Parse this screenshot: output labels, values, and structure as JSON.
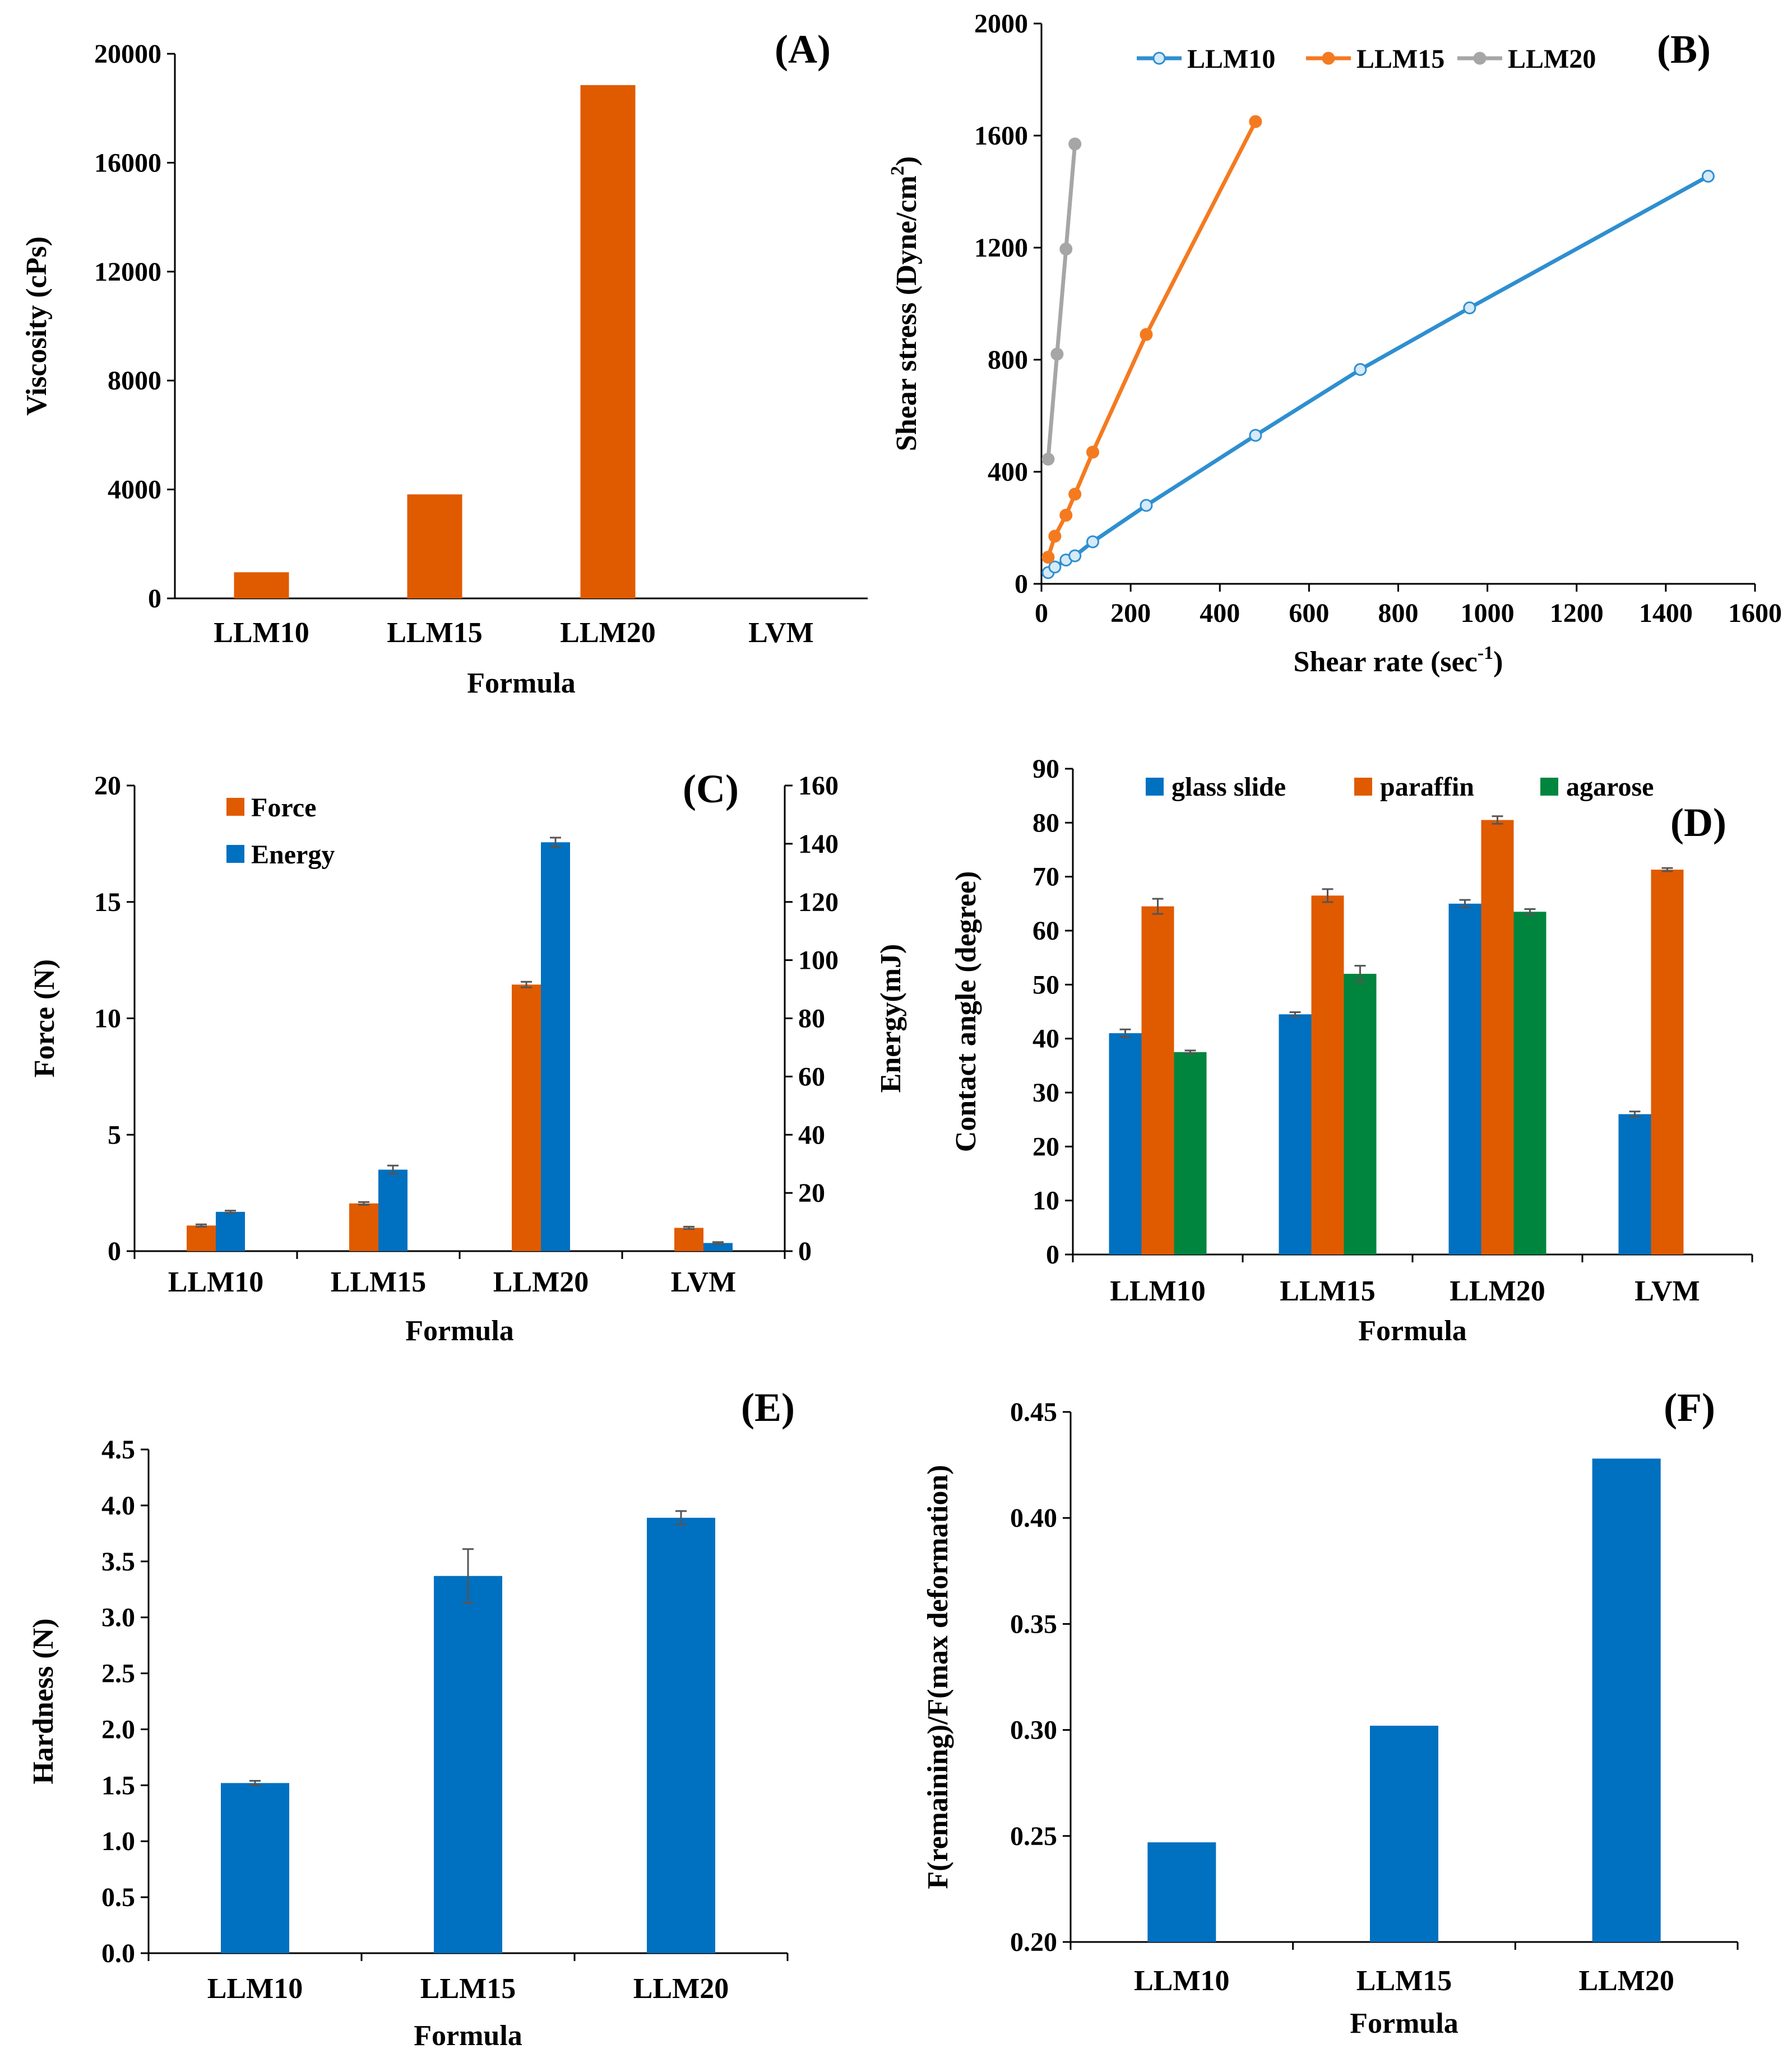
{
  "chart_data": [
    {
      "panel": "(A)",
      "type": "bar",
      "xlabel": "Formula",
      "ylabel": "Viscosity (cPs)",
      "categories": [
        "LLM10",
        "LLM15",
        "LLM20",
        "LVM"
      ],
      "values": [
        960,
        3820,
        18850,
        0
      ],
      "ylim": [
        0,
        20000
      ],
      "yticks": [
        0,
        4000,
        8000,
        12000,
        16000,
        20000
      ],
      "color": "#E05A00"
    },
    {
      "panel": "(B)",
      "type": "line",
      "xlabel": "Shear rate (sec",
      "xlabel_sup": "-1",
      "xlabel_end": ")",
      "ylabel": "Shear stress (Dyne/cm",
      "ylabel_sup": "2",
      "ylabel_end": ")",
      "xlim": [
        0,
        1600
      ],
      "ylim": [
        0,
        2000
      ],
      "xticks": [
        0,
        200,
        400,
        600,
        800,
        1000,
        1200,
        1400,
        1600
      ],
      "yticks": [
        0,
        400,
        800,
        1200,
        1600,
        2000
      ],
      "legend_position": "top",
      "series": [
        {
          "name": "LLM10",
          "color": "#2E8FD0",
          "marker": "open",
          "x": [
            15,
            30,
            55,
            75,
            115,
            235,
            480,
            715,
            960,
            1495
          ],
          "y": [
            40,
            60,
            85,
            100,
            150,
            280,
            530,
            765,
            985,
            1455
          ]
        },
        {
          "name": "LLM15",
          "color": "#F47A20",
          "marker": "filled",
          "x": [
            15,
            30,
            55,
            75,
            115,
            235,
            480
          ],
          "y": [
            95,
            170,
            245,
            320,
            470,
            890,
            1650
          ]
        },
        {
          "name": "LLM20",
          "color": "#A6A6A6",
          "marker": "filled",
          "x": [
            15,
            35,
            55,
            75
          ],
          "y": [
            445,
            820,
            1195,
            1570
          ]
        }
      ]
    },
    {
      "panel": "(C)",
      "type": "bar",
      "xlabel": "Formula",
      "ylabel": "Force (N)",
      "ylabel_right": "Energy(mJ)",
      "categories": [
        "LLM10",
        "LLM15",
        "LLM20",
        "LVM"
      ],
      "ylim": [
        0,
        20
      ],
      "yticks": [
        0,
        5,
        10,
        15,
        20
      ],
      "ylim_right": [
        0,
        160
      ],
      "yticks_right": [
        0,
        20,
        40,
        60,
        80,
        100,
        120,
        140,
        160
      ],
      "legend_position": "top-left",
      "series": [
        {
          "name": "Force",
          "axis": "left",
          "color": "#E05A00",
          "values": [
            1.1,
            2.05,
            11.45,
            1.0
          ],
          "errors": [
            0.05,
            0.06,
            0.12,
            0.05
          ]
        },
        {
          "name": "Energy",
          "axis": "right",
          "color": "#0070C0",
          "values": [
            13.5,
            28.0,
            140.5,
            2.8
          ],
          "errors": [
            0.4,
            1.4,
            1.6,
            0.3
          ]
        }
      ]
    },
    {
      "panel": "(D)",
      "type": "bar",
      "xlabel": "Formula",
      "ylabel": "Contact angle (degree)",
      "categories": [
        "LLM10",
        "LLM15",
        "LLM20",
        "LVM"
      ],
      "ylim": [
        0,
        90
      ],
      "yticks": [
        0,
        10,
        20,
        30,
        40,
        50,
        60,
        70,
        80,
        90
      ],
      "legend_position": "top",
      "series": [
        {
          "name": "glass slide",
          "color": "#0070C0",
          "values": [
            41.0,
            44.5,
            65.0,
            26.0
          ],
          "errors": [
            0.7,
            0.4,
            0.7,
            0.5
          ]
        },
        {
          "name": "paraffin",
          "color": "#E05A00",
          "values": [
            64.5,
            66.5,
            80.5,
            71.3
          ],
          "errors": [
            1.4,
            1.2,
            0.7,
            0.3
          ]
        },
        {
          "name": "agarose",
          "color": "#00853E",
          "values": [
            37.5,
            52.0,
            63.5,
            null
          ],
          "errors": [
            0.3,
            1.5,
            0.5,
            null
          ]
        }
      ]
    },
    {
      "panel": "(E)",
      "type": "bar",
      "xlabel": "Formula",
      "ylabel": "Hardness (N)",
      "categories": [
        "LLM10",
        "LLM15",
        "LLM20"
      ],
      "values": [
        1.52,
        3.37,
        3.89
      ],
      "errors": [
        0.02,
        0.24,
        0.06
      ],
      "ylim": [
        0,
        4.5
      ],
      "yticks": [
        "0.0",
        "0.5",
        "1.0",
        "1.5",
        "2.0",
        "2.5",
        "3.0",
        "3.5",
        "4.0",
        "4.5"
      ],
      "color": "#0070C0"
    },
    {
      "panel": "(F)",
      "type": "bar",
      "xlabel": "Formula",
      "ylabel": "F(remaining)/F(max deformation)",
      "categories": [
        "LLM10",
        "LLM15",
        "LLM20"
      ],
      "values": [
        0.247,
        0.302,
        0.428
      ],
      "ylim": [
        0.2,
        0.45
      ],
      "yticks": [
        "0.20",
        "0.25",
        "0.30",
        "0.35",
        "0.40",
        "0.45"
      ],
      "color": "#0070C0"
    }
  ]
}
